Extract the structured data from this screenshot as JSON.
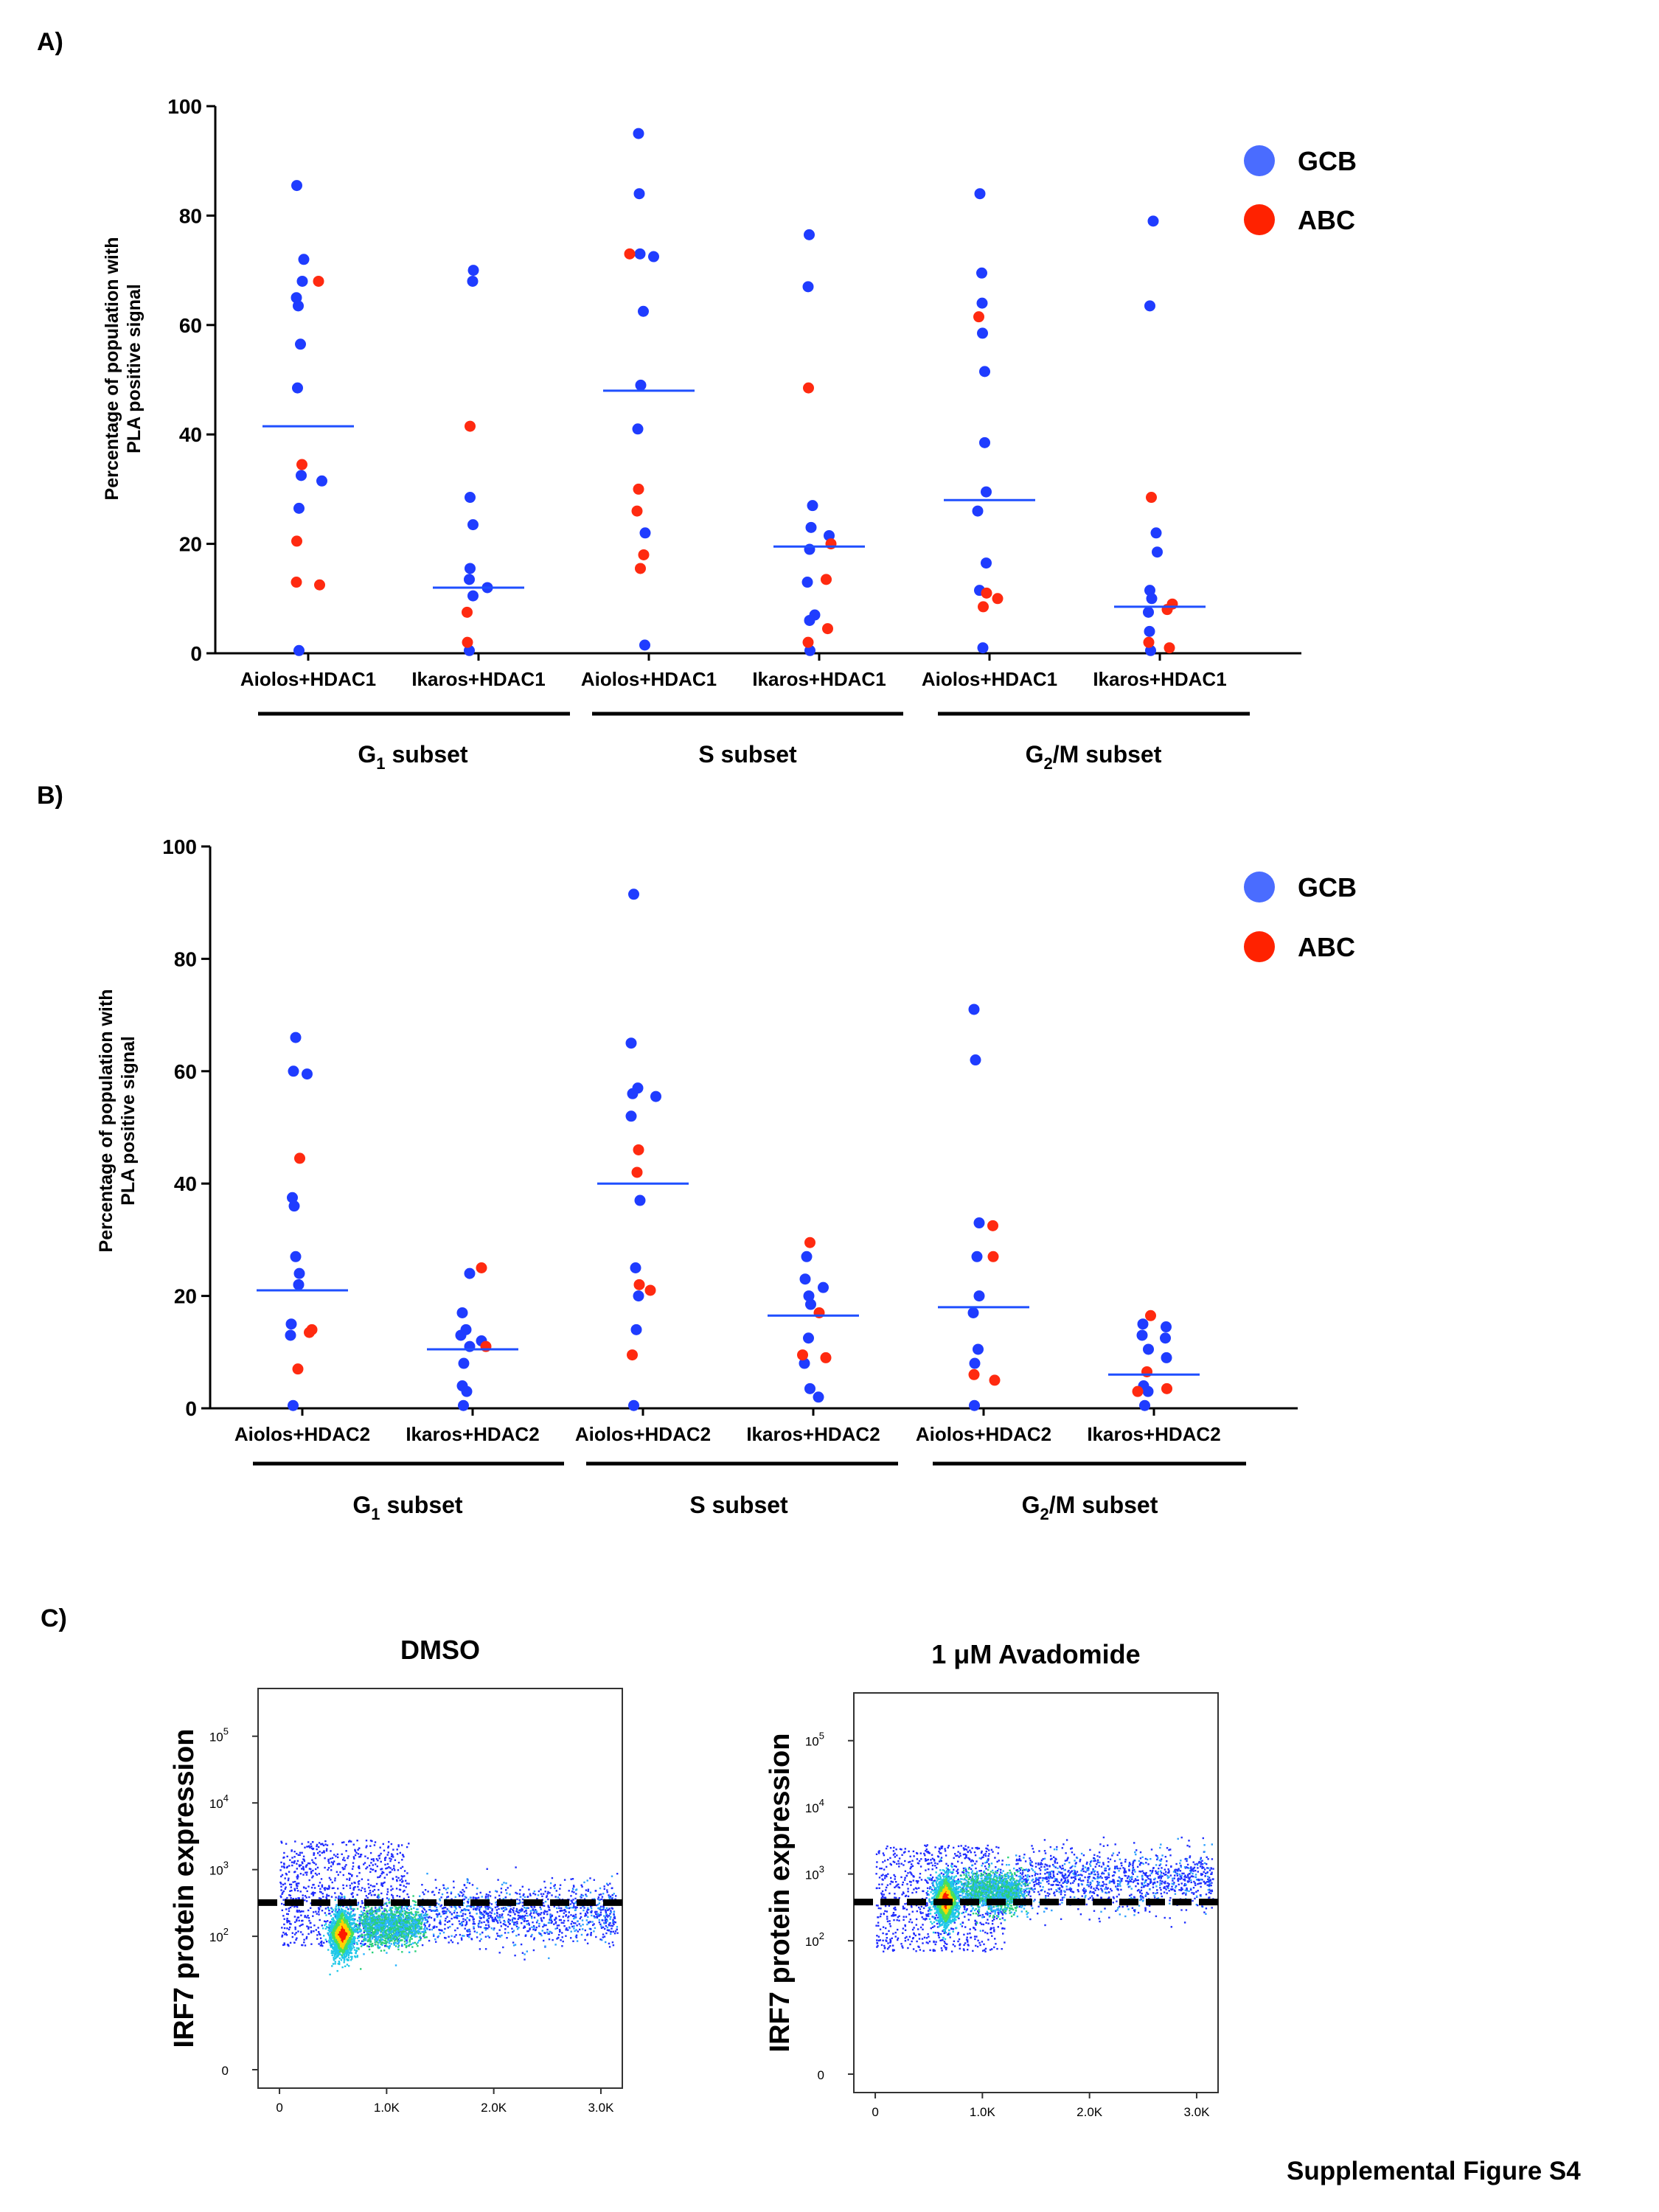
{
  "footer": "Supplemental Figure S4",
  "colors": {
    "gcb": "#1f3cff",
    "abc": "#ff2a10",
    "median": "#1f4fff",
    "legend_gcb": "#4a6cff",
    "legend_abc": "#ff2200"
  },
  "panels": {
    "a": {
      "label": "A)",
      "y_title_line1": "Percentage of population with",
      "y_title_line2": "PLA positive signal"
    },
    "b": {
      "label": "B)",
      "y_title_line1": "Percentage of population with",
      "y_title_line2": "PLA positive signal"
    },
    "c": {
      "label": "C)"
    }
  },
  "legend": {
    "gcb": "GCB",
    "abc": "ABC"
  },
  "groups_a": [
    "G1 subset",
    "S subset",
    "G2/M subset"
  ],
  "chart_data": [
    {
      "type": "scatter",
      "title": "",
      "ylim": [
        0,
        100
      ],
      "yticks": [
        0,
        20,
        40,
        60,
        80,
        100
      ],
      "categories": [
        "Aiolos+HDAC1",
        "Ikaros+HDAC1",
        "Aiolos+HDAC1",
        "Ikaros+HDAC1",
        "Aiolos+HDAC1",
        "Ikaros+HDAC1"
      ],
      "groups": [
        "G1 subset",
        "S subset",
        "G2/M subset"
      ],
      "medians": [
        41.5,
        12,
        48,
        19.5,
        28,
        8.5
      ],
      "series": [
        {
          "name": "GCB",
          "points": [
            [
              0,
              85.5
            ],
            [
              0,
              72
            ],
            [
              0,
              68
            ],
            [
              0,
              65
            ],
            [
              0,
              63.5
            ],
            [
              0,
              56.5
            ],
            [
              0,
              48.5
            ],
            [
              0,
              32.5
            ],
            [
              0,
              31.5
            ],
            [
              0,
              26.5
            ],
            [
              0,
              0.5
            ],
            [
              1,
              70
            ],
            [
              1,
              68
            ],
            [
              1,
              28.5
            ],
            [
              1,
              23.5
            ],
            [
              1,
              15.5
            ],
            [
              1,
              13.5
            ],
            [
              1,
              12
            ],
            [
              1,
              10.5
            ],
            [
              1,
              0.5
            ],
            [
              2,
              95
            ],
            [
              2,
              84
            ],
            [
              2,
              73
            ],
            [
              2,
              72.5
            ],
            [
              2,
              62.5
            ],
            [
              2,
              49
            ],
            [
              2,
              41
            ],
            [
              2,
              22
            ],
            [
              2,
              1.5
            ],
            [
              3,
              76.5
            ],
            [
              3,
              67
            ],
            [
              3,
              27
            ],
            [
              3,
              23
            ],
            [
              3,
              21.5
            ],
            [
              3,
              19
            ],
            [
              3,
              13
            ],
            [
              3,
              7
            ],
            [
              3,
              6
            ],
            [
              3,
              0.5
            ],
            [
              4,
              84
            ],
            [
              4,
              69.5
            ],
            [
              4,
              64
            ],
            [
              4,
              58.5
            ],
            [
              4,
              51.5
            ],
            [
              4,
              38.5
            ],
            [
              4,
              29.5
            ],
            [
              4,
              26
            ],
            [
              4,
              16.5
            ],
            [
              4,
              11.5
            ],
            [
              4,
              1
            ],
            [
              5,
              79
            ],
            [
              5,
              63.5
            ],
            [
              5,
              22
            ],
            [
              5,
              18.5
            ],
            [
              5,
              11.5
            ],
            [
              5,
              10
            ],
            [
              5,
              7.5
            ],
            [
              5,
              4
            ],
            [
              5,
              0.5
            ]
          ]
        },
        {
          "name": "ABC",
          "points": [
            [
              0,
              68
            ],
            [
              0,
              34.5
            ],
            [
              0,
              20.5
            ],
            [
              0,
              13
            ],
            [
              0,
              12.5
            ],
            [
              1,
              41.5
            ],
            [
              1,
              7.5
            ],
            [
              1,
              2
            ],
            [
              2,
              73
            ],
            [
              2,
              30
            ],
            [
              2,
              26
            ],
            [
              2,
              18
            ],
            [
              2,
              15.5
            ],
            [
              3,
              48.5
            ],
            [
              3,
              20
            ],
            [
              3,
              13.5
            ],
            [
              3,
              4.5
            ],
            [
              3,
              2
            ],
            [
              4,
              61.5
            ],
            [
              4,
              11
            ],
            [
              4,
              10
            ],
            [
              4,
              8.5
            ],
            [
              5,
              28.5
            ],
            [
              5,
              9
            ],
            [
              5,
              8
            ],
            [
              5,
              2
            ],
            [
              5,
              1
            ]
          ]
        }
      ]
    },
    {
      "type": "scatter",
      "title": "",
      "ylim": [
        0,
        100
      ],
      "yticks": [
        0,
        20,
        40,
        60,
        80,
        100
      ],
      "categories": [
        "Aiolos+HDAC2",
        "Ikaros+HDAC2",
        "Aiolos+HDAC2",
        "Ikaros+HDAC2",
        "Aiolos+HDAC2",
        "Ikaros+HDAC2"
      ],
      "groups": [
        "G1 subset",
        "S subset",
        "G2/M subset"
      ],
      "medians": [
        21,
        10.5,
        40,
        16.5,
        18,
        6
      ],
      "series": [
        {
          "name": "GCB",
          "points": [
            [
              0,
              66
            ],
            [
              0,
              60
            ],
            [
              0,
              59.5
            ],
            [
              0,
              37.5
            ],
            [
              0,
              36
            ],
            [
              0,
              27
            ],
            [
              0,
              24
            ],
            [
              0,
              22
            ],
            [
              0,
              15
            ],
            [
              0,
              13
            ],
            [
              0,
              0.5
            ],
            [
              1,
              24
            ],
            [
              1,
              17
            ],
            [
              1,
              14
            ],
            [
              1,
              13
            ],
            [
              1,
              12
            ],
            [
              1,
              11
            ],
            [
              1,
              8
            ],
            [
              1,
              4
            ],
            [
              1,
              3
            ],
            [
              1,
              0.5
            ],
            [
              2,
              91.5
            ],
            [
              2,
              65
            ],
            [
              2,
              57
            ],
            [
              2,
              56
            ],
            [
              2,
              55.5
            ],
            [
              2,
              52
            ],
            [
              2,
              37
            ],
            [
              2,
              25
            ],
            [
              2,
              20
            ],
            [
              2,
              14
            ],
            [
              2,
              0.5
            ],
            [
              3,
              27
            ],
            [
              3,
              23
            ],
            [
              3,
              21.5
            ],
            [
              3,
              20
            ],
            [
              3,
              18.5
            ],
            [
              3,
              12.5
            ],
            [
              3,
              8
            ],
            [
              3,
              3.5
            ],
            [
              3,
              2
            ],
            [
              4,
              71
            ],
            [
              4,
              62
            ],
            [
              4,
              33
            ],
            [
              4,
              27
            ],
            [
              4,
              20
            ],
            [
              4,
              17
            ],
            [
              4,
              10.5
            ],
            [
              4,
              8
            ],
            [
              4,
              0.5
            ],
            [
              5,
              15
            ],
            [
              5,
              14.5
            ],
            [
              5,
              13
            ],
            [
              5,
              12.5
            ],
            [
              5,
              10.5
            ],
            [
              5,
              9
            ],
            [
              5,
              4
            ],
            [
              5,
              3
            ],
            [
              5,
              0.5
            ]
          ]
        },
        {
          "name": "ABC",
          "points": [
            [
              0,
              44.5
            ],
            [
              0,
              14
            ],
            [
              0,
              13.5
            ],
            [
              0,
              7
            ],
            [
              1,
              25
            ],
            [
              1,
              11
            ],
            [
              2,
              46
            ],
            [
              2,
              42
            ],
            [
              2,
              22
            ],
            [
              2,
              21
            ],
            [
              2,
              9.5
            ],
            [
              3,
              29.5
            ],
            [
              3,
              17
            ],
            [
              3,
              9.5
            ],
            [
              3,
              9
            ],
            [
              4,
              32.5
            ],
            [
              4,
              27
            ],
            [
              4,
              6
            ],
            [
              4,
              5
            ],
            [
              5,
              16.5
            ],
            [
              5,
              6.5
            ],
            [
              5,
              3.5
            ],
            [
              5,
              3
            ]
          ]
        }
      ]
    },
    {
      "type": "scatter",
      "title": "DMSO",
      "ylabel": "IRF7 protein expression",
      "xticks": [
        "0",
        "1.0K",
        "2.0K",
        "3.0K"
      ],
      "xtick_values": [
        0,
        1000,
        2000,
        3000
      ],
      "xlim": [
        -200,
        3200
      ],
      "yticks": [
        "10^5",
        "10^4",
        "10^3",
        "10^2",
        "0"
      ],
      "ytick_values": [
        100000,
        10000,
        1000,
        100,
        0
      ],
      "yscale": "log",
      "threshold_y": 320,
      "density_peak": {
        "x": 580,
        "y": 110
      }
    },
    {
      "type": "scatter",
      "title": "1 μM Avadomide",
      "ylabel": "IRF7 protein expression",
      "xticks": [
        "0",
        "1.0K",
        "2.0K",
        "3.0K"
      ],
      "xtick_values": [
        0,
        1000,
        2000,
        3000
      ],
      "xlim": [
        -200,
        3200
      ],
      "yticks": [
        "10^5",
        "10^4",
        "10^3",
        "10^2",
        "0"
      ],
      "ytick_values": [
        100000,
        10000,
        1000,
        100,
        0
      ],
      "yscale": "log",
      "threshold_y": 380,
      "density_peak": {
        "x": 650,
        "y": 420
      }
    }
  ]
}
